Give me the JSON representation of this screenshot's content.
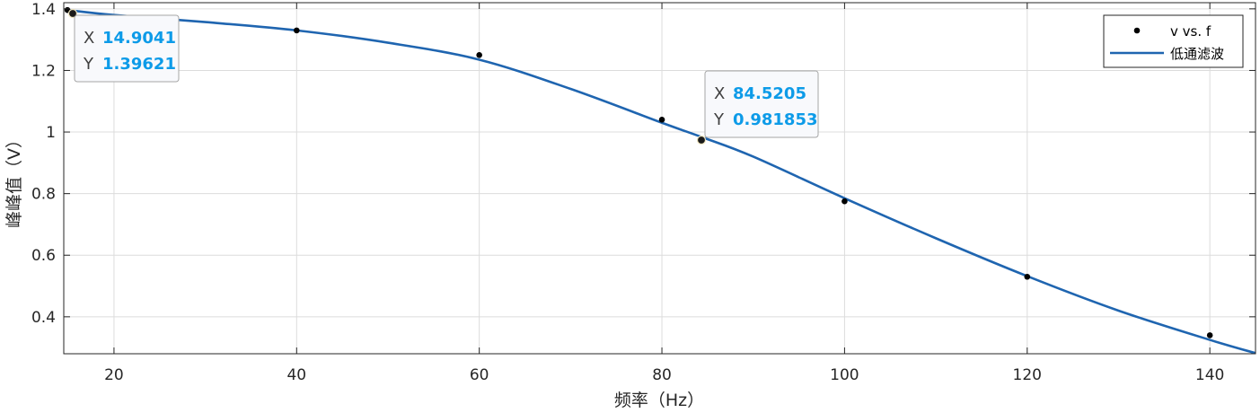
{
  "chart_data": {
    "type": "line",
    "xlabel": "频率（Hz）",
    "ylabel": "峰峰值（V）",
    "xlim": [
      14.5,
      145
    ],
    "ylim": [
      0.28,
      1.42
    ],
    "xticks": [
      20,
      40,
      60,
      80,
      100,
      120,
      140
    ],
    "xtick_labels": [
      "20",
      "40",
      "60",
      "80",
      "100",
      "120",
      "140"
    ],
    "yticks": [
      0.4,
      0.6,
      0.8,
      1.0,
      1.2,
      1.4
    ],
    "ytick_labels": [
      "0.4",
      "0.6",
      "0.8",
      "1",
      "1.2",
      "1.4"
    ],
    "grid": true,
    "legend_position": "top-right",
    "series": [
      {
        "name": "v vs. f",
        "kind": "scatter",
        "color": "#000000",
        "x": [
          14.9041,
          40,
          60,
          80,
          100,
          120,
          140
        ],
        "y": [
          1.39621,
          1.33,
          1.25,
          1.04,
          0.775,
          0.53,
          0.34
        ]
      },
      {
        "name": "低通滤波",
        "kind": "line",
        "color": "#1f65b0",
        "x": [
          14.9041,
          20,
          30,
          40,
          50,
          60,
          70,
          80,
          84.5205,
          90,
          100,
          110,
          120,
          130,
          140,
          145
        ],
        "y": [
          1.39621,
          1.38,
          1.357,
          1.33,
          1.29,
          1.235,
          1.14,
          1.03,
          0.981853,
          0.92,
          0.785,
          0.655,
          0.532,
          0.42,
          0.325,
          0.282
        ]
      }
    ],
    "datatips": [
      {
        "x_key": "X",
        "y_key": "Y",
        "x_value": "14.9041",
        "y_value": "1.39621",
        "x": 14.9041,
        "y": 1.39621
      },
      {
        "x_key": "X",
        "y_key": "Y",
        "x_value": "84.5205",
        "y_value": "0.981853",
        "x": 84.5205,
        "y": 0.981853
      }
    ]
  }
}
